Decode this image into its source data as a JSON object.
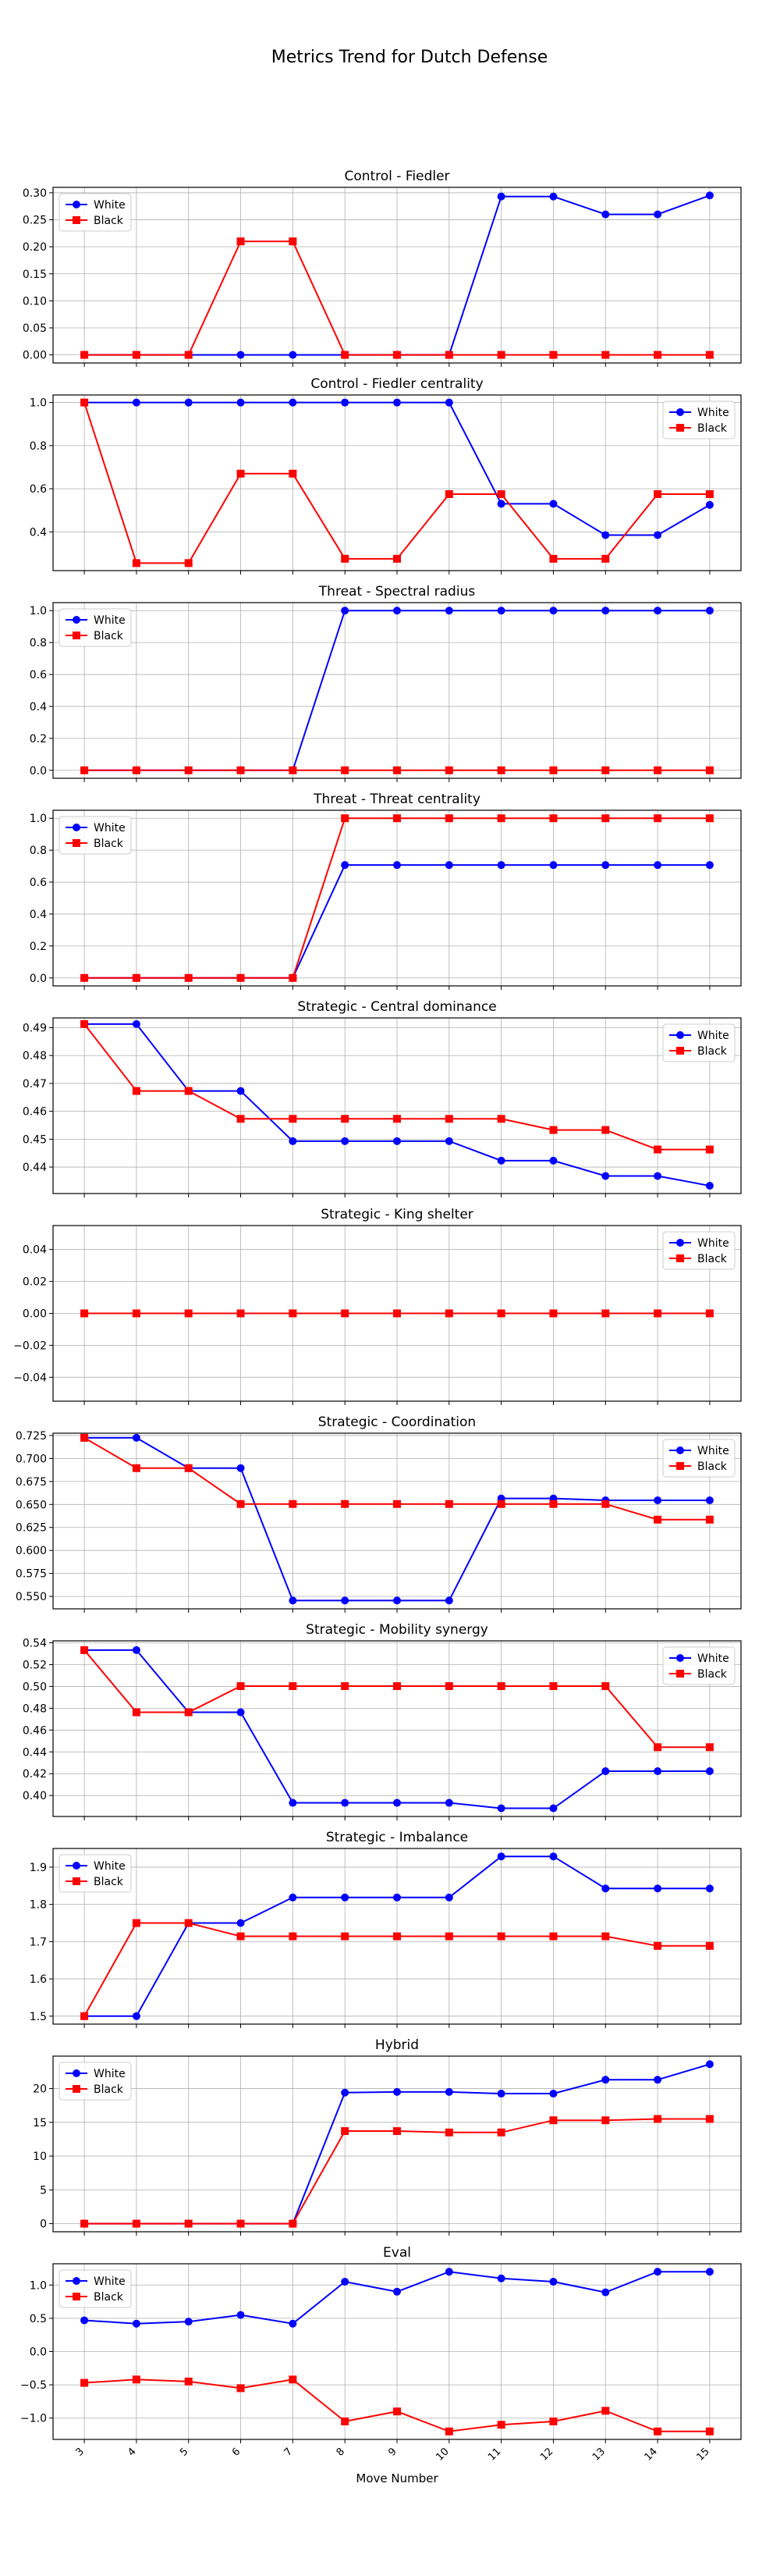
{
  "figure": {
    "title": "Metrics Trend for Dutch Defense"
  },
  "colors": {
    "white_series": "#0000ff",
    "black_series": "#ff0000",
    "grid": "#b0b0b0"
  },
  "chart_data": [
    {
      "type": "line",
      "title": "Control - Fiedler",
      "xlabel": "",
      "ylabel": "",
      "x": [
        3,
        4,
        5,
        6,
        7,
        8,
        9,
        10,
        11,
        12,
        13,
        14,
        15
      ],
      "ylim": [
        -0.015,
        0.31
      ],
      "yticks": [
        0.0,
        0.05,
        0.1,
        0.15,
        0.2,
        0.25,
        0.3
      ],
      "yticklabels": [
        "0.00",
        "0.05",
        "0.10",
        "0.15",
        "0.20",
        "0.25",
        "0.30"
      ],
      "legend": "upper-left",
      "grid": true,
      "series": [
        {
          "name": "White",
          "values": [
            0,
            0,
            0,
            0,
            0,
            0,
            0,
            0,
            0.293,
            0.293,
            0.26,
            0.26,
            0.295
          ]
        },
        {
          "name": "Black",
          "values": [
            0,
            0,
            0,
            0.21,
            0.21,
            0,
            0,
            0,
            0,
            0,
            0,
            0,
            0
          ]
        }
      ]
    },
    {
      "type": "line",
      "title": "Control - Fiedler centrality",
      "xlabel": "",
      "ylabel": "",
      "x": [
        3,
        4,
        5,
        6,
        7,
        8,
        9,
        10,
        11,
        12,
        13,
        14,
        15
      ],
      "ylim": [
        0.22,
        1.035
      ],
      "yticks": [
        0.4,
        0.6,
        0.8,
        1.0
      ],
      "yticklabels": [
        "0.4",
        "0.6",
        "0.8",
        "1.0"
      ],
      "legend": "upper-right",
      "grid": true,
      "series": [
        {
          "name": "White",
          "values": [
            1,
            1,
            1,
            1,
            1,
            1,
            1,
            1,
            0.53,
            0.53,
            0.385,
            0.385,
            0.525
          ]
        },
        {
          "name": "Black",
          "values": [
            1,
            0.255,
            0.255,
            0.67,
            0.67,
            0.275,
            0.275,
            0.575,
            0.575,
            0.275,
            0.275,
            0.575,
            0.575
          ]
        }
      ]
    },
    {
      "type": "line",
      "title": "Threat - Spectral radius",
      "xlabel": "",
      "ylabel": "",
      "x": [
        3,
        4,
        5,
        6,
        7,
        8,
        9,
        10,
        11,
        12,
        13,
        14,
        15
      ],
      "ylim": [
        -0.05,
        1.05
      ],
      "yticks": [
        0.0,
        0.2,
        0.4,
        0.6,
        0.8,
        1.0
      ],
      "yticklabels": [
        "0.0",
        "0.2",
        "0.4",
        "0.6",
        "0.8",
        "1.0"
      ],
      "legend": "upper-left",
      "grid": true,
      "series": [
        {
          "name": "White",
          "values": [
            0,
            0,
            0,
            0,
            0,
            1,
            1,
            1,
            1,
            1,
            1,
            1,
            1
          ]
        },
        {
          "name": "Black",
          "values": [
            0,
            0,
            0,
            0,
            0,
            0,
            0,
            0,
            0,
            0,
            0,
            0,
            0
          ]
        }
      ]
    },
    {
      "type": "line",
      "title": "Threat - Threat centrality",
      "xlabel": "",
      "ylabel": "",
      "x": [
        3,
        4,
        5,
        6,
        7,
        8,
        9,
        10,
        11,
        12,
        13,
        14,
        15
      ],
      "ylim": [
        -0.05,
        1.05
      ],
      "yticks": [
        0.0,
        0.2,
        0.4,
        0.6,
        0.8,
        1.0
      ],
      "yticklabels": [
        "0.0",
        "0.2",
        "0.4",
        "0.6",
        "0.8",
        "1.0"
      ],
      "legend": "upper-left",
      "grid": true,
      "series": [
        {
          "name": "White",
          "values": [
            0,
            0,
            0,
            0,
            0,
            0.707,
            0.707,
            0.707,
            0.707,
            0.707,
            0.707,
            0.707,
            0.707
          ]
        },
        {
          "name": "Black",
          "values": [
            0,
            0,
            0,
            0,
            0,
            1,
            1,
            1,
            1,
            1,
            1,
            1,
            1
          ]
        }
      ]
    },
    {
      "type": "line",
      "title": "Strategic - Central dominance",
      "xlabel": "",
      "ylabel": "",
      "x": [
        3,
        4,
        5,
        6,
        7,
        8,
        9,
        10,
        11,
        12,
        13,
        14,
        15
      ],
      "ylim": [
        0.4305,
        0.4935
      ],
      "yticks": [
        0.44,
        0.45,
        0.46,
        0.47,
        0.48,
        0.49
      ],
      "yticklabels": [
        "0.44",
        "0.45",
        "0.46",
        "0.47",
        "0.48",
        "0.49"
      ],
      "legend": "upper-right",
      "grid": true,
      "series": [
        {
          "name": "White",
          "values": [
            0.4913,
            0.4913,
            0.4673,
            0.4673,
            0.4493,
            0.4493,
            0.4493,
            0.4493,
            0.4423,
            0.4423,
            0.4368,
            0.4368,
            0.4333
          ]
        },
        {
          "name": "Black",
          "values": [
            0.4913,
            0.4673,
            0.4673,
            0.4573,
            0.4573,
            0.4573,
            0.4573,
            0.4573,
            0.4573,
            0.4533,
            0.4533,
            0.4463,
            0.4463
          ]
        }
      ]
    },
    {
      "type": "line",
      "title": "Strategic - King shelter",
      "xlabel": "",
      "ylabel": "",
      "x": [
        3,
        4,
        5,
        6,
        7,
        8,
        9,
        10,
        11,
        12,
        13,
        14,
        15
      ],
      "ylim": [
        -0.055,
        0.055
      ],
      "yticks": [
        -0.04,
        -0.02,
        0.0,
        0.02,
        0.04
      ],
      "yticklabels": [
        "−0.04",
        "−0.02",
        "0.00",
        "0.02",
        "0.04"
      ],
      "legend": "upper-right",
      "grid": true,
      "series": [
        {
          "name": "White",
          "values": [
            0,
            0,
            0,
            0,
            0,
            0,
            0,
            0,
            0,
            0,
            0,
            0,
            0
          ]
        },
        {
          "name": "Black",
          "values": [
            0,
            0,
            0,
            0,
            0,
            0,
            0,
            0,
            0,
            0,
            0,
            0,
            0
          ]
        }
      ]
    },
    {
      "type": "line",
      "title": "Strategic - Coordination",
      "xlabel": "",
      "ylabel": "",
      "x": [
        3,
        4,
        5,
        6,
        7,
        8,
        9,
        10,
        11,
        12,
        13,
        14,
        15
      ],
      "ylim": [
        0.5365,
        0.7275
      ],
      "yticks": [
        0.55,
        0.575,
        0.6,
        0.625,
        0.65,
        0.675,
        0.7,
        0.725
      ],
      "yticklabels": [
        "0.550",
        "0.575",
        "0.600",
        "0.625",
        "0.650",
        "0.675",
        "0.700",
        "0.725"
      ],
      "legend": "upper-right",
      "grid": true,
      "series": [
        {
          "name": "White",
          "values": [
            0.7225,
            0.7225,
            0.6895,
            0.6895,
            0.5455,
            0.5455,
            0.5455,
            0.5455,
            0.6565,
            0.6565,
            0.6545,
            0.6545,
            0.6545
          ]
        },
        {
          "name": "Black",
          "values": [
            0.7225,
            0.6895,
            0.6895,
            0.6505,
            0.6505,
            0.6505,
            0.6505,
            0.6505,
            0.6505,
            0.6505,
            0.6505,
            0.6335,
            0.6335
          ]
        }
      ]
    },
    {
      "type": "line",
      "title": "Strategic - Mobility synergy",
      "xlabel": "",
      "ylabel": "",
      "x": [
        3,
        4,
        5,
        6,
        7,
        8,
        9,
        10,
        11,
        12,
        13,
        14,
        15
      ],
      "ylim": [
        0.3808,
        0.5418
      ],
      "yticks": [
        0.4,
        0.42,
        0.44,
        0.46,
        0.48,
        0.5,
        0.52,
        0.54
      ],
      "yticklabels": [
        "0.40",
        "0.42",
        "0.44",
        "0.46",
        "0.48",
        "0.50",
        "0.52",
        "0.54"
      ],
      "legend": "upper-right",
      "grid": true,
      "series": [
        {
          "name": "White",
          "values": [
            0.5333,
            0.5333,
            0.4763,
            0.4763,
            0.3933,
            0.3933,
            0.3933,
            0.3933,
            0.3883,
            0.3883,
            0.4223,
            0.4223,
            0.4223
          ]
        },
        {
          "name": "Black",
          "values": [
            0.5333,
            0.4763,
            0.4763,
            0.5003,
            0.5003,
            0.5003,
            0.5003,
            0.5003,
            0.5003,
            0.5003,
            0.5003,
            0.4443,
            0.4443
          ]
        }
      ]
    },
    {
      "type": "line",
      "title": "Strategic - Imbalance",
      "xlabel": "",
      "ylabel": "",
      "x": [
        3,
        4,
        5,
        6,
        7,
        8,
        9,
        10,
        11,
        12,
        13,
        14,
        15
      ],
      "ylim": [
        1.4786,
        1.9502
      ],
      "yticks": [
        1.5,
        1.6,
        1.7,
        1.8,
        1.9
      ],
      "yticklabels": [
        "1.5",
        "1.6",
        "1.7",
        "1.8",
        "1.9"
      ],
      "legend": "upper-left",
      "grid": true,
      "series": [
        {
          "name": "White",
          "values": [
            1.5,
            1.5,
            1.75,
            1.75,
            1.8186,
            1.8186,
            1.8186,
            1.8186,
            1.9288,
            1.9288,
            1.8428,
            1.8428,
            1.8428
          ]
        },
        {
          "name": "Black",
          "values": [
            1.5,
            1.75,
            1.75,
            1.7143,
            1.7143,
            1.7143,
            1.7143,
            1.7143,
            1.7143,
            1.7143,
            1.7143,
            1.6886,
            1.6886
          ]
        }
      ]
    },
    {
      "type": "line",
      "title": "Hybrid",
      "xlabel": "",
      "ylabel": "",
      "x": [
        3,
        4,
        5,
        6,
        7,
        8,
        9,
        10,
        11,
        12,
        13,
        14,
        15
      ],
      "ylim": [
        -1.2,
        24.8
      ],
      "yticks": [
        0,
        5,
        10,
        15,
        20
      ],
      "yticklabels": [
        "0",
        "5",
        "10",
        "15",
        "20"
      ],
      "legend": "upper-left",
      "grid": true,
      "series": [
        {
          "name": "White",
          "values": [
            0,
            0,
            0,
            0,
            0,
            19.4,
            19.5,
            19.5,
            19.25,
            19.25,
            21.3,
            21.3,
            23.6
          ]
        },
        {
          "name": "Black",
          "values": [
            0,
            0,
            0,
            0,
            0,
            13.7,
            13.7,
            13.5,
            13.5,
            15.3,
            15.3,
            15.5,
            15.5
          ]
        }
      ]
    },
    {
      "type": "line",
      "title": "Eval",
      "xlabel": "Move Number",
      "ylabel": "",
      "x": [
        3,
        4,
        5,
        6,
        7,
        8,
        9,
        10,
        11,
        12,
        13,
        14,
        15
      ],
      "ylim": [
        -1.32,
        1.32
      ],
      "yticks": [
        -1.0,
        -0.5,
        0.0,
        0.5,
        1.0
      ],
      "yticklabels": [
        "−1.0",
        "−0.5",
        "0.0",
        "0.5",
        "1.0"
      ],
      "legend": "upper-left",
      "grid": true,
      "series": [
        {
          "name": "White",
          "values": [
            0.47,
            0.42,
            0.45,
            0.55,
            0.42,
            1.05,
            0.9,
            1.2,
            1.1,
            1.05,
            0.89,
            1.2,
            1.2
          ]
        },
        {
          "name": "Black",
          "values": [
            -0.47,
            -0.42,
            -0.45,
            -0.55,
            -0.42,
            -1.05,
            -0.9,
            -1.2,
            -1.1,
            -1.05,
            -0.89,
            -1.2,
            -1.2
          ]
        }
      ]
    }
  ]
}
